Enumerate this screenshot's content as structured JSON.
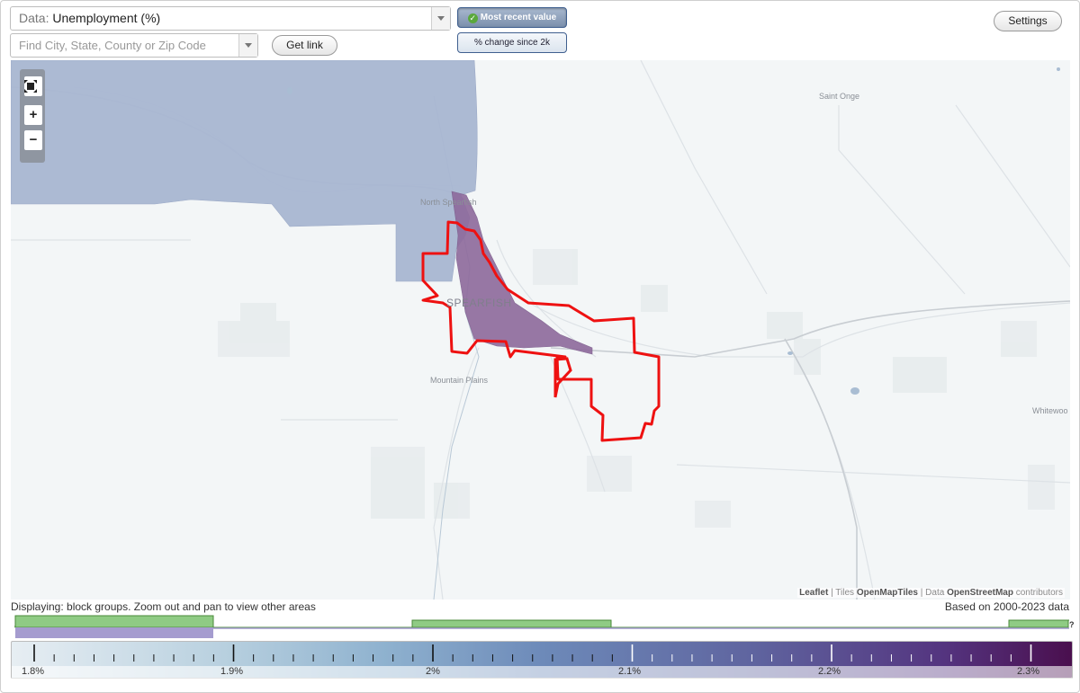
{
  "controls": {
    "data_prefix": "Data:",
    "data_value": "Unemployment (%)",
    "search_placeholder": "Find City, State, County or Zip Code",
    "get_link": "Get link",
    "most_recent": "Most recent value",
    "pct_change": "% change since 2k",
    "settings": "Settings"
  },
  "map": {
    "labels": {
      "north_spearfish": "North Spearfish",
      "spearfish": "SPEARFISH",
      "mountain_plains": "Mountain Plains",
      "saint_onge": "Saint Onge",
      "whitewood": "Whitewoo"
    },
    "icons": [
      "zoom-extent-icon",
      "zoom-in-icon",
      "zoom-out-icon"
    ],
    "zoom_in": "+",
    "zoom_out": "−",
    "attribution": {
      "leaflet": "Leaflet",
      "sep1": " | Tiles ",
      "tiles": "OpenMapTiles",
      "sep2": " | Data ",
      "osm": "OpenStreetMap",
      "contributors": " contributors"
    },
    "colors": {
      "low_region": "#a9b7d2",
      "high_region": "#8e6a9c",
      "selection_outline": "#ee1111"
    }
  },
  "footer": {
    "displaying": "Displaying: block groups. Zoom out and pan to view other areas",
    "based_on": "Based on 2000-2023 data",
    "histogram_help": "?"
  },
  "legend": {
    "labels": [
      "1.8%",
      "1.9%",
      "2%",
      "2.1%",
      "2.2%",
      "2.3%"
    ]
  }
}
